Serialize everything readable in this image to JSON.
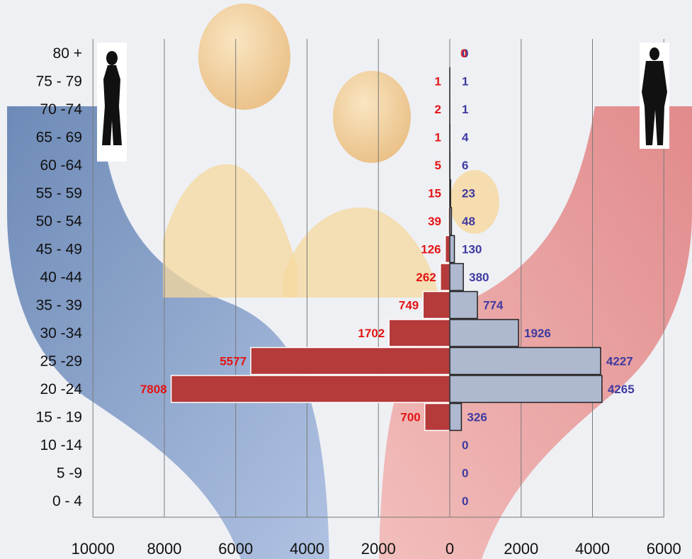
{
  "chart_data": {
    "type": "bar",
    "orientation": "horizontal-population-pyramid",
    "title": "",
    "xlabel": "",
    "ylabel": "",
    "categories": [
      "80 +",
      "75 - 79",
      "70 -74",
      "65 - 69",
      "60 -64",
      "55 - 59",
      "50 - 54",
      "45 - 49",
      "40 -44",
      "35 - 39",
      "30 -34",
      "25 -29",
      "20 -24",
      "15 - 19",
      "10 -14",
      "5 -9",
      "0 - 4"
    ],
    "series": [
      {
        "side": "left",
        "color": "#b53a3a",
        "label_color": "#e31414",
        "values": [
          0,
          1,
          2,
          1,
          5,
          15,
          39,
          126,
          262,
          749,
          1702,
          5577,
          7808,
          700,
          0,
          0,
          0
        ]
      },
      {
        "side": "right",
        "color": "#aeb8cf",
        "label_color": "#3f3aa0",
        "values": [
          0,
          1,
          1,
          4,
          6,
          23,
          48,
          130,
          380,
          774,
          1926,
          4227,
          4265,
          326,
          0,
          0,
          0
        ]
      }
    ],
    "left_labels": [
      "",
      "1",
      "2",
      "1",
      "5",
      "15",
      "39",
      "126",
      "262",
      "749",
      "1702",
      "5577",
      "7808",
      "700",
      "",
      "",
      ""
    ],
    "right_labels": [
      "0",
      "1",
      "1",
      "4",
      "6",
      "23",
      "48",
      "130",
      "380",
      "774",
      "1926",
      "4227",
      "4265",
      "326",
      "0",
      "0",
      "0"
    ],
    "overlap_label": "0",
    "x_ticks": [
      "10000",
      "8000",
      "6000",
      "4000",
      "2000",
      "0",
      "2000",
      "4000",
      "6000"
    ],
    "xlim": [
      -10000,
      6000
    ],
    "grid": true,
    "legend": "none"
  },
  "icons": {
    "left": "woman-silhouette-icon",
    "right": "man-silhouette-icon"
  }
}
